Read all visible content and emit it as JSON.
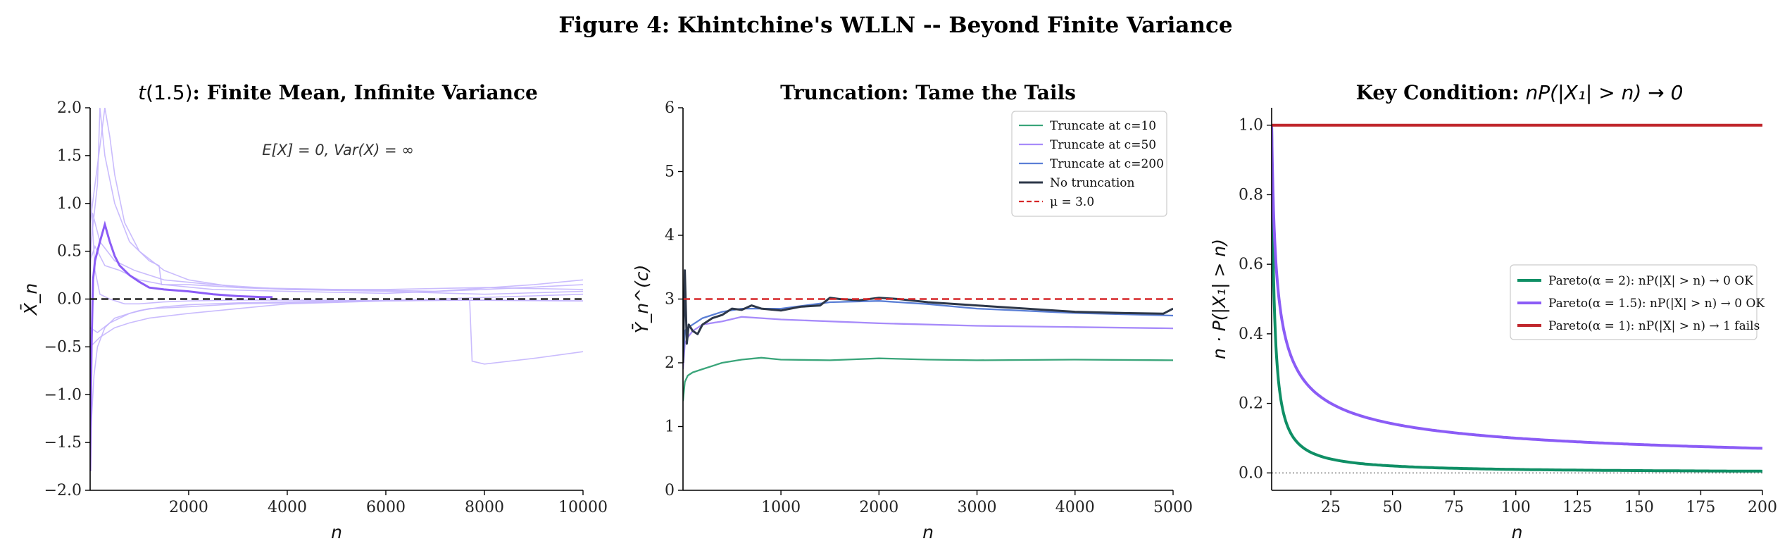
{
  "figure_title": "Figure 4: Khintchine's WLLN -- Beyond Finite Variance",
  "colors": {
    "t_paths": "#c4b5fd",
    "t_main": "#8b5cf6",
    "c10": "#3aa57a",
    "c50": "#a78bfa",
    "c200": "#5b7fd6",
    "notrunc": "#2d3748",
    "mu": "#d62728",
    "pareto2": "#0f8f65",
    "pareto15": "#8b5cf6",
    "pareto1": "#c0272d"
  },
  "chart_data": [
    {
      "type": "line",
      "title": "t(1.5): Finite Mean, Infinite Variance",
      "xlabel": "n",
      "ylabel": "X̄_n",
      "xlim": [
        1,
        10000
      ],
      "ylim": [
        -2.0,
        2.0
      ],
      "xticks": [
        "2000",
        "4000",
        "6000",
        "8000",
        "10000"
      ],
      "yticks": [
        "−2.0",
        "−1.5",
        "−1.0",
        "−0.5",
        "0.0",
        "0.5",
        "1.0",
        "1.5",
        "2.0"
      ],
      "annotation": "E[X] = 0, Var(X) = ∞",
      "reference_line": {
        "y": 0.0,
        "style": "dashed"
      },
      "series": [
        {
          "role": "path",
          "x": [
            1,
            100,
            200,
            400,
            700,
            1000,
            1500,
            2000,
            3000,
            4000,
            6000,
            8000,
            10000
          ],
          "y": [
            1.2,
            0.3,
            0.05,
            0.0,
            -0.05,
            -0.05,
            -0.03,
            -0.02,
            -0.01,
            -0.01,
            -0.02,
            -0.01,
            -0.02
          ]
        },
        {
          "role": "path",
          "x": [
            1,
            80,
            150,
            300,
            500,
            800,
            1000,
            1500,
            2000,
            3000,
            5000,
            7000,
            10000
          ],
          "y": [
            -1.5,
            -0.8,
            -0.5,
            -0.3,
            -0.2,
            -0.15,
            -0.12,
            -0.08,
            -0.06,
            -0.04,
            -0.02,
            -0.01,
            -0.02
          ]
        },
        {
          "role": "path",
          "x": [
            1,
            150,
            200,
            300,
            500,
            800,
            1200,
            1400,
            1450,
            2000,
            3000,
            4000,
            6000,
            8000,
            10000
          ],
          "y": [
            0.5,
            1.2,
            2.0,
            1.5,
            1.0,
            0.6,
            0.4,
            0.35,
            0.15,
            0.15,
            0.12,
            0.1,
            0.1,
            0.12,
            0.1
          ]
        },
        {
          "role": "path",
          "x": [
            1,
            300,
            400,
            500,
            700,
            1000,
            1500,
            2000,
            3000,
            5000,
            7000,
            9000,
            10000
          ],
          "y": [
            0.8,
            2.0,
            1.7,
            1.3,
            0.8,
            0.5,
            0.3,
            0.2,
            0.12,
            0.1,
            0.08,
            0.15,
            0.2
          ]
        },
        {
          "role": "path",
          "x": [
            1,
            200,
            500,
            800,
            1200,
            2000,
            3000,
            4000,
            6000,
            7700,
            7750,
            8000,
            9000,
            10000
          ],
          "y": [
            -0.5,
            -0.4,
            -0.3,
            -0.25,
            -0.2,
            -0.15,
            -0.1,
            -0.05,
            -0.02,
            -0.01,
            -0.65,
            -0.68,
            -0.62,
            -0.55
          ]
        },
        {
          "role": "path",
          "x": [
            1,
            100,
            300,
            600,
            1000,
            1500,
            2500,
            4000,
            6000,
            8000,
            10000
          ],
          "y": [
            0.4,
            0.55,
            0.35,
            0.3,
            0.2,
            0.15,
            0.1,
            0.08,
            0.06,
            0.1,
            0.15
          ]
        },
        {
          "role": "path",
          "x": [
            1,
            150,
            400,
            800,
            1200,
            2000,
            3000,
            5000,
            7000,
            10000
          ],
          "y": [
            -0.3,
            -0.35,
            -0.25,
            -0.15,
            -0.1,
            -0.08,
            -0.05,
            -0.03,
            0.0,
            0.05
          ]
        },
        {
          "role": "path",
          "x": [
            1,
            50,
            200,
            500,
            900,
            1500,
            2500,
            4000,
            6000,
            8000,
            10000
          ],
          "y": [
            0.2,
            0.9,
            0.6,
            0.4,
            0.3,
            0.2,
            0.15,
            0.1,
            0.08,
            0.05,
            0.08
          ]
        },
        {
          "role": "highlight",
          "x": [
            1,
            30,
            60,
            100,
            200,
            300,
            400,
            500,
            600,
            700,
            800,
            1000,
            1200,
            1500,
            2000,
            2500,
            3000,
            3500,
            3700
          ],
          "y": [
            -1.8,
            -0.5,
            0.2,
            0.4,
            0.6,
            0.78,
            0.6,
            0.45,
            0.35,
            0.3,
            0.25,
            0.18,
            0.12,
            0.1,
            0.08,
            0.05,
            0.03,
            0.02,
            0.02
          ]
        }
      ]
    },
    {
      "type": "line",
      "title": "Truncation: Tame the Tails",
      "xlabel": "n",
      "ylabel": "Ȳ_n^(c)",
      "xlim": [
        1,
        5000
      ],
      "ylim": [
        0,
        6
      ],
      "xticks": [
        "1000",
        "2000",
        "3000",
        "4000",
        "5000"
      ],
      "yticks": [
        "0",
        "1",
        "2",
        "3",
        "4",
        "5",
        "6"
      ],
      "legend_position": "upper right",
      "series": [
        {
          "name": "Truncate at c=10",
          "key": "c10",
          "x": [
            1,
            20,
            50,
            100,
            200,
            400,
            600,
            800,
            1000,
            1500,
            2000,
            2500,
            3000,
            4000,
            5000
          ],
          "y": [
            1.4,
            1.7,
            1.8,
            1.85,
            1.9,
            2.0,
            2.05,
            2.08,
            2.05,
            2.04,
            2.07,
            2.05,
            2.04,
            2.05,
            2.04
          ]
        },
        {
          "name": "Truncate at c=50",
          "key": "c50",
          "x": [
            1,
            20,
            50,
            100,
            200,
            400,
            600,
            800,
            1000,
            1500,
            2000,
            2500,
            3000,
            4000,
            5000
          ],
          "y": [
            1.9,
            2.3,
            2.4,
            2.5,
            2.6,
            2.65,
            2.72,
            2.7,
            2.68,
            2.65,
            2.62,
            2.6,
            2.58,
            2.56,
            2.54
          ]
        },
        {
          "name": "Truncate at c=200",
          "key": "c200",
          "x": [
            1,
            20,
            50,
            100,
            200,
            400,
            600,
            800,
            1000,
            1500,
            2000,
            2500,
            3000,
            4000,
            5000
          ],
          "y": [
            2.0,
            2.5,
            2.55,
            2.6,
            2.7,
            2.8,
            2.85,
            2.85,
            2.85,
            2.95,
            2.97,
            2.92,
            2.85,
            2.78,
            2.74
          ]
        },
        {
          "name": "No truncation",
          "key": "notrunc",
          "x": [
            1,
            20,
            40,
            60,
            100,
            150,
            200,
            300,
            400,
            500,
            600,
            700,
            800,
            1000,
            1200,
            1400,
            1500,
            1600,
            1800,
            2000,
            2200,
            2500,
            3000,
            3500,
            4000,
            4500,
            4900,
            5000
          ],
          "y": [
            2.0,
            3.45,
            2.3,
            2.6,
            2.5,
            2.45,
            2.6,
            2.7,
            2.75,
            2.85,
            2.83,
            2.9,
            2.85,
            2.82,
            2.88,
            2.9,
            3.02,
            3.0,
            2.98,
            3.02,
            3.0,
            2.95,
            2.9,
            2.85,
            2.8,
            2.78,
            2.77,
            2.85
          ]
        },
        {
          "name": "μ = 3.0",
          "key": "mu",
          "style": "dashed",
          "x": [
            1,
            5000
          ],
          "y": [
            3.0,
            3.0
          ]
        }
      ]
    },
    {
      "type": "line",
      "title": "Key Condition: nP(|X₁| > n) → 0",
      "xlabel": "n",
      "ylabel": "n · P(|X₁| > n)",
      "xlim": [
        1,
        200
      ],
      "ylim": [
        -0.05,
        1.05
      ],
      "xticks": [
        "25",
        "50",
        "75",
        "100",
        "125",
        "150",
        "175",
        "200"
      ],
      "yticks": [
        "0.0",
        "0.2",
        "0.4",
        "0.6",
        "0.8",
        "1.0"
      ],
      "legend_position": "center right",
      "reference_line": {
        "y": 0.0,
        "style": "dotted"
      },
      "series": [
        {
          "name": "Pareto(α = 2): nP(|X| > n) → 0 OK",
          "key": "pareto2",
          "function": "n^(-1)"
        },
        {
          "name": "Pareto(α = 1.5): nP(|X| > n) → 0 OK",
          "key": "pareto15",
          "function": "n^(-0.5)"
        },
        {
          "name": "Pareto(α = 1): nP(|X| > n) → 1 fails",
          "key": "pareto1",
          "function": "1"
        }
      ]
    }
  ]
}
